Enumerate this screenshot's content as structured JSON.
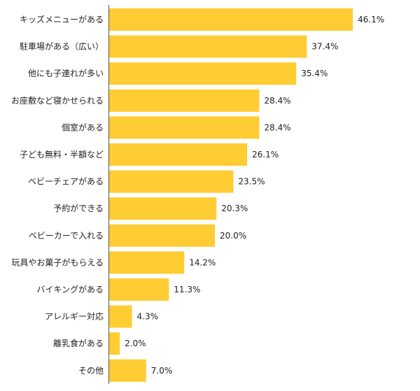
{
  "chart_data": {
    "type": "bar",
    "orientation": "horizontal",
    "categories": [
      "キッズメニューがある",
      "駐車場がある（広い）",
      "他にも子連れが多い",
      "お座敷など寝かせられる",
      "個室がある",
      "子ども無料・半額など",
      "ベビーチェアがある",
      "予約ができる",
      "ベビーカーで入れる",
      "玩具やお菓子がもらえる",
      "バイキングがある",
      "アレルギー対応",
      "離乳食がある",
      "その他"
    ],
    "values": [
      46.1,
      37.4,
      35.4,
      28.4,
      28.4,
      26.1,
      23.5,
      20.3,
      20.0,
      14.2,
      11.3,
      4.3,
      2.0,
      7.0
    ],
    "value_labels": [
      "46.1%",
      "37.4%",
      "35.4%",
      "28.4%",
      "28.4%",
      "26.1%",
      "23.5%",
      "20.3%",
      "20.0%",
      "14.2%",
      "11.3%",
      "4.3%",
      "2.0%",
      "7.0%"
    ],
    "title": "",
    "xlabel": "",
    "ylabel": "",
    "xlim": [
      0,
      50
    ],
    "grid": false,
    "bar_color": "#FFCC33",
    "axis_color": "#555555"
  }
}
